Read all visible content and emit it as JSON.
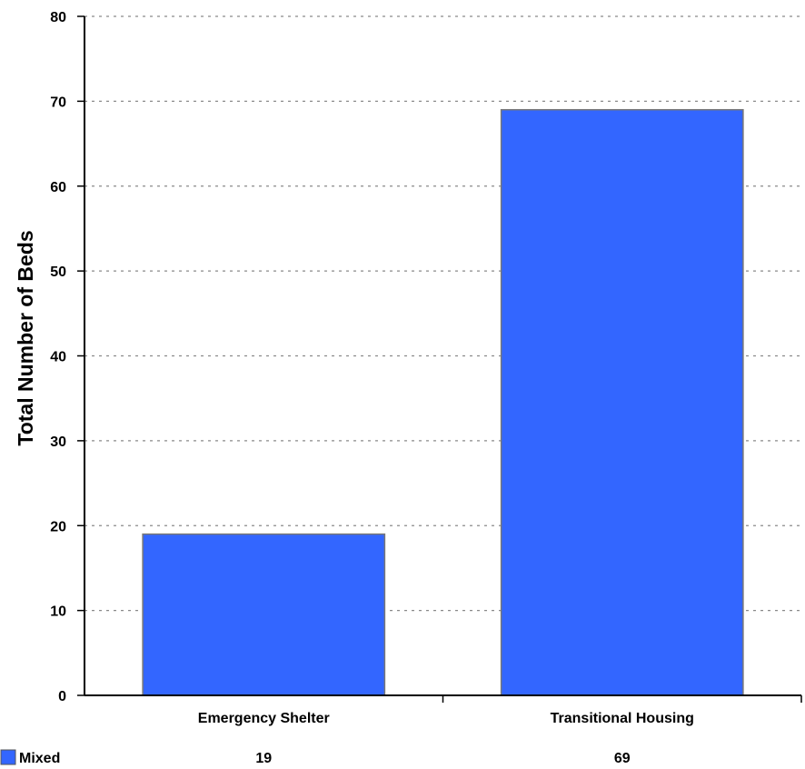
{
  "chart_data": {
    "type": "bar",
    "categories": [
      "Emergency Shelter",
      "Transitional Housing"
    ],
    "series": [
      {
        "name": "Mixed",
        "values": [
          19,
          69
        ],
        "color": "#3366ff"
      }
    ],
    "ylabel": "Total Number of Beds",
    "xlabel": "",
    "ylim": [
      0,
      80
    ],
    "yticks": [
      0,
      10,
      20,
      30,
      40,
      50,
      60,
      70,
      80
    ],
    "grid": true,
    "legend": "bottom-left",
    "data_table": true
  }
}
